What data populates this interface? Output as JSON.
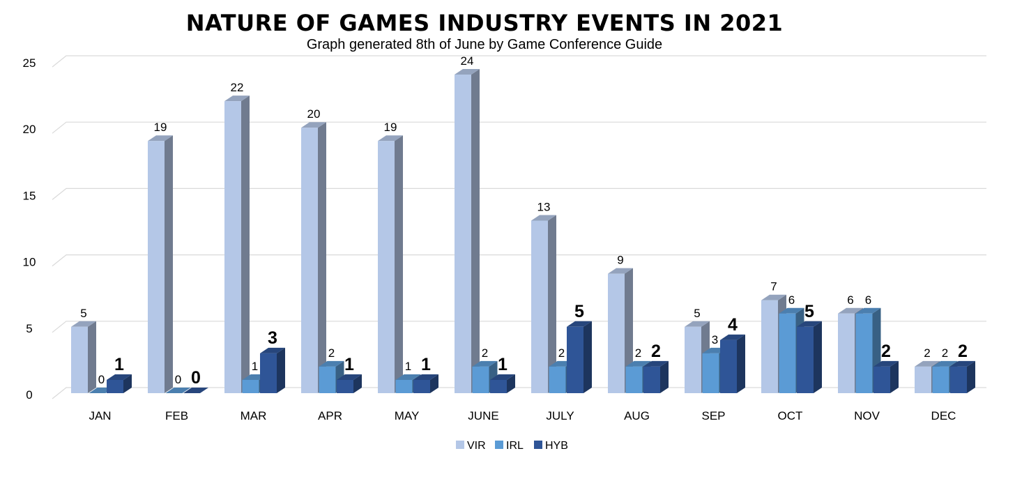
{
  "chart_data": {
    "type": "bar",
    "title": "NATURE OF GAMES INDUSTRY EVENTS IN 2021",
    "subtitle": "Graph generated 8th of June by Game Conference Guide",
    "categories": [
      "JAN",
      "FEB",
      "MAR",
      "APR",
      "MAY",
      "JUNE",
      "JULY",
      "AUG",
      "SEP",
      "OCT",
      "NOV",
      "DEC"
    ],
    "series": [
      {
        "name": "VIR",
        "color": "#b4c7e7",
        "values": [
          5,
          19,
          22,
          20,
          19,
          24,
          13,
          9,
          5,
          7,
          6,
          2
        ]
      },
      {
        "name": "IRL",
        "color": "#5b9bd5",
        "values": [
          0,
          0,
          1,
          2,
          1,
          2,
          2,
          2,
          3,
          6,
          6,
          2
        ]
      },
      {
        "name": "HYB",
        "color": "#2f5597",
        "values": [
          1,
          0,
          3,
          1,
          1,
          1,
          5,
          2,
          4,
          5,
          2,
          2
        ]
      }
    ],
    "ylim": [
      0,
      25
    ],
    "yticks": [
      0,
      5,
      10,
      15,
      20,
      25
    ],
    "xlabel": "",
    "ylabel": "",
    "grid": true,
    "legend_position": "bottom",
    "data_labels": true,
    "bold_labels_series": "HYB"
  }
}
